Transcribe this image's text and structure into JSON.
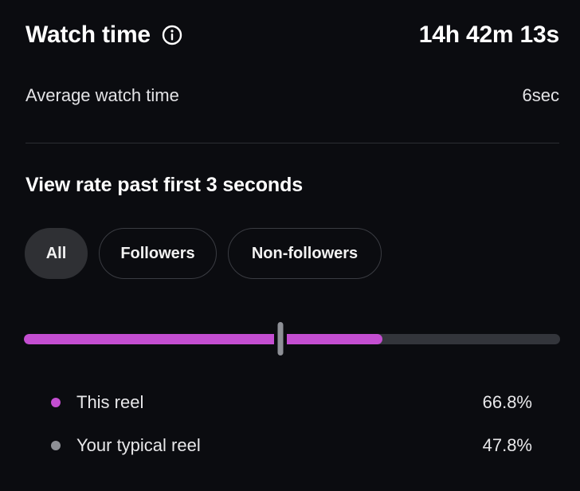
{
  "header": {
    "title": "Watch time",
    "info_icon": "info-circle-icon",
    "total_watch_time": "14h 42m 13s"
  },
  "average": {
    "label": "Average watch time",
    "value": "6sec"
  },
  "view_rate": {
    "title": "View rate past first 3 seconds",
    "filters": [
      {
        "label": "All",
        "selected": true
      },
      {
        "label": "Followers",
        "selected": false
      },
      {
        "label": "Non-followers",
        "selected": false
      }
    ]
  },
  "comparison": {
    "this_reel": {
      "label": "This reel",
      "value_text": "66.8%",
      "value": 66.8,
      "color": "#c44ed1"
    },
    "typical_reel": {
      "label": "Your typical reel",
      "value_text": "47.8%",
      "value": 47.8,
      "color": "#8e9096"
    },
    "track_color": "#33353b"
  }
}
